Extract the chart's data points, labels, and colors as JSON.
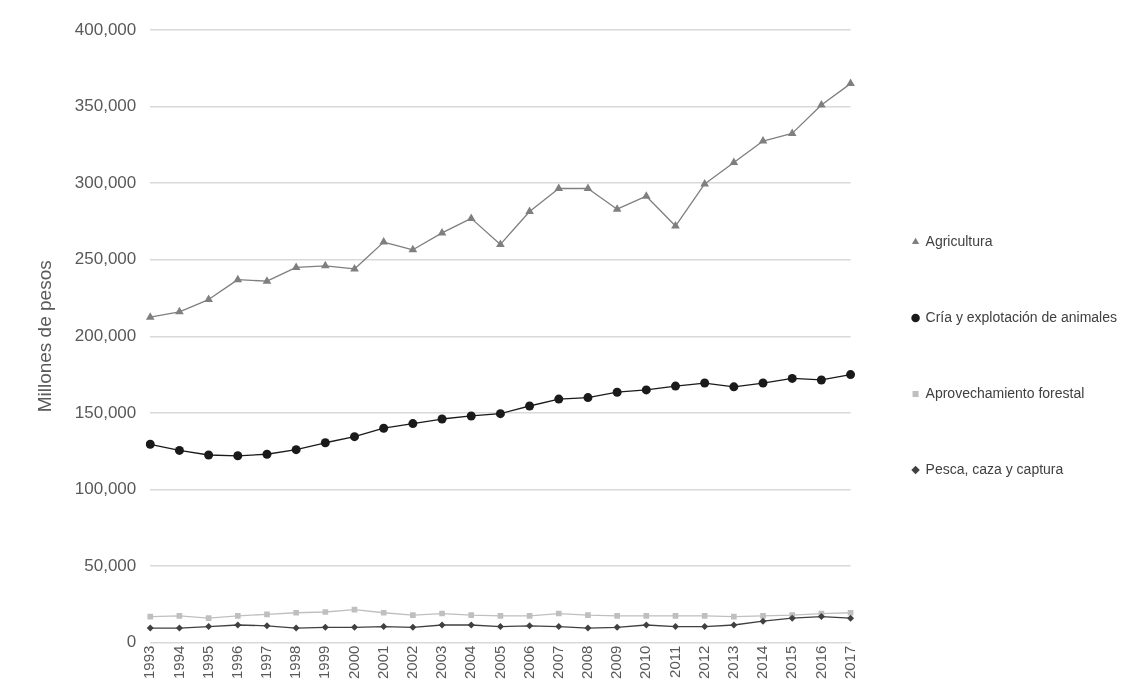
{
  "chart_data": {
    "type": "line",
    "ylabel": "Millones de pesos",
    "categories": [
      "1993",
      "1994",
      "1995",
      "1996",
      "1997",
      "1998",
      "1999",
      "2000",
      "2001",
      "2002",
      "2003",
      "2004",
      "2005",
      "2006",
      "2007",
      "2008",
      "2009",
      "2010",
      "2011",
      "2012",
      "2013",
      "2014",
      "2015",
      "2016",
      "2017"
    ],
    "series": [
      {
        "name": "Agricultura",
        "color": "#7f7f7f",
        "marker": "triangle",
        "values": [
          212500,
          216000,
          224000,
          237000,
          236000,
          245000,
          246000,
          244000,
          261500,
          256500,
          267500,
          277000,
          260000,
          281500,
          296500,
          296500,
          283000,
          291500,
          272000,
          299500,
          313500,
          327500,
          332500,
          351000,
          365000
        ]
      },
      {
        "name": "Cría y explotación de animales",
        "color": "#1a1a1a",
        "marker": "circle",
        "values": [
          129500,
          125500,
          122500,
          122000,
          123000,
          126000,
          130500,
          134500,
          140000,
          143000,
          146000,
          148000,
          149500,
          154500,
          159000,
          160000,
          163500,
          165000,
          167500,
          169500,
          167000,
          169500,
          172500,
          171500,
          175000
        ]
      },
      {
        "name": "Aprovechamiento forestal",
        "color": "#bfbfbf",
        "marker": "square",
        "values": [
          17000,
          17500,
          16000,
          17500,
          18500,
          19500,
          20000,
          21500,
          19500,
          18000,
          19000,
          18000,
          17500,
          17500,
          19000,
          18000,
          17500,
          17500,
          17500,
          17500,
          17000,
          17500,
          18000,
          19000,
          19500
        ]
      },
      {
        "name": "Pesca, caza y captura",
        "color": "#404040",
        "marker": "diamond",
        "values": [
          9500,
          9500,
          10500,
          11500,
          11000,
          9500,
          10000,
          10000,
          10500,
          10000,
          11500,
          11500,
          10500,
          11000,
          10500,
          9500,
          10000,
          11500,
          10500,
          10500,
          11500,
          14000,
          16000,
          17000,
          16000
        ]
      }
    ],
    "ylim": [
      0,
      400000
    ],
    "yticks": [
      {
        "value": 0,
        "label": "0"
      },
      {
        "value": 50000,
        "label": "50,000"
      },
      {
        "value": 100000,
        "label": "100,000"
      },
      {
        "value": 150000,
        "label": "150,000"
      },
      {
        "value": 200000,
        "label": "200,000"
      },
      {
        "value": 250000,
        "label": "250,000"
      },
      {
        "value": 300000,
        "label": "300,000"
      },
      {
        "value": 350000,
        "label": "350,000"
      },
      {
        "value": 400000,
        "label": "400,000"
      }
    ],
    "grid": "y",
    "legend": "right",
    "line_style": "solid"
  }
}
